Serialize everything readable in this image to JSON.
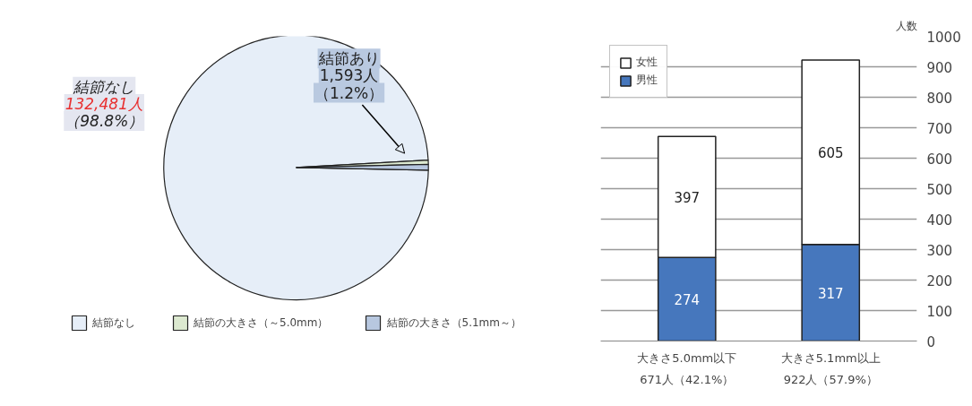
{
  "chart_data": [
    {
      "type": "pie",
      "categories": [
        "結節なし",
        "結節の大きさ（～5.0mm）",
        "結節の大きさ（5.1mm～）"
      ],
      "values": [
        98.8,
        0.5,
        0.7
      ],
      "colors": [
        "#e6eef8",
        "#dce9d0",
        "#b7c7df"
      ],
      "legend": "bottom",
      "annotations": [
        "結節なし",
        "132,481人",
        "（98.8%）",
        "結節あり",
        "1,593人",
        "（1.2%）"
      ]
    },
    {
      "type": "bar",
      "stacked": true,
      "categories": [
        "大きさ5.0mm以下",
        "大きさ5.1mm以上"
      ],
      "ylabel": "人数",
      "series": [
        {
          "name": "男性",
          "color": "#4677bd",
          "values": [
            274,
            317
          ]
        },
        {
          "name": "女性",
          "color": "#ffffff",
          "values": [
            397,
            605
          ]
        }
      ],
      "ylim": [
        0,
        1000
      ],
      "yticks": [
        0,
        100,
        200,
        300,
        400,
        500,
        600,
        700,
        800,
        900,
        1000
      ],
      "grid": "y",
      "legend": "top left",
      "data_labels": true,
      "annotations": [
        "671人（42.1%）",
        "922人（57.9%）"
      ]
    }
  ]
}
